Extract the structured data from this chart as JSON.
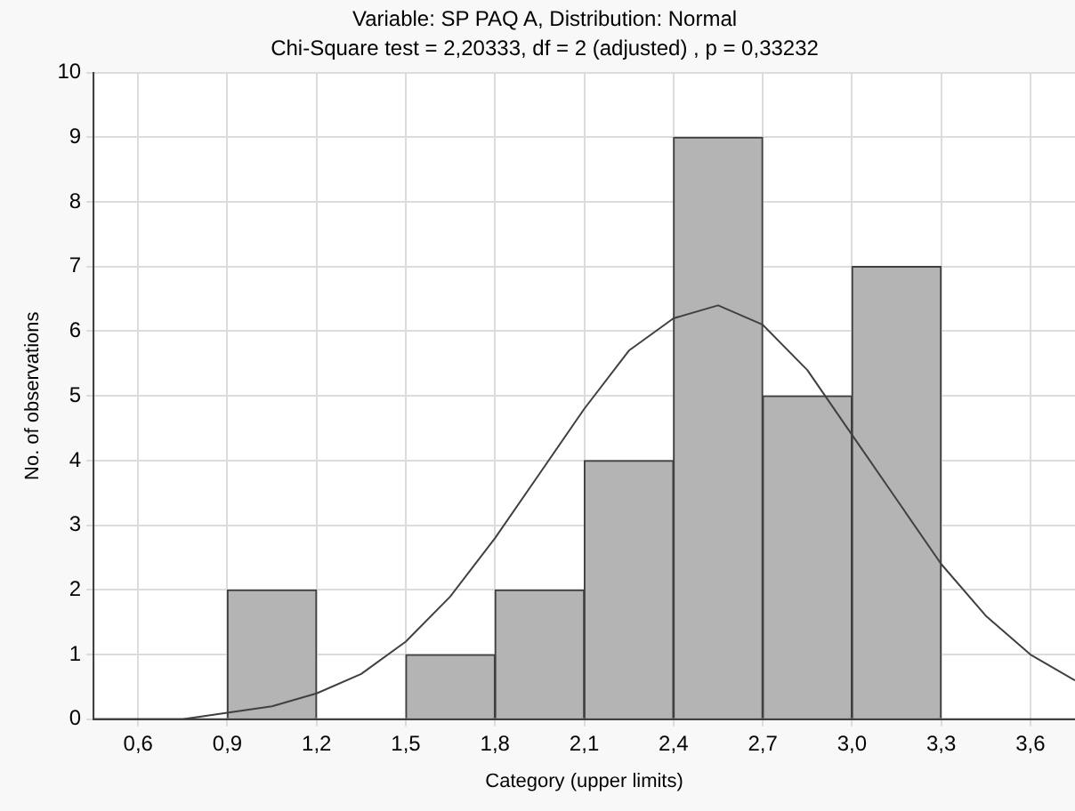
{
  "chart_data": {
    "type": "histogram",
    "title": "Variable: SP PAQ A, Distribution: Normal",
    "subtitle": "Chi-Square test = 2,20333, df = 2 (adjusted) , p = 0,33232",
    "xlabel": "Category (upper limits)",
    "ylabel": "No. of observations",
    "bins": [
      0.6,
      0.9,
      1.2,
      1.5,
      1.8,
      2.1,
      2.4,
      2.7,
      3.0,
      3.3
    ],
    "values": [
      0,
      2,
      0,
      1,
      2,
      4,
      9,
      5,
      7
    ],
    "color": "#b4b4b4",
    "series": [
      {
        "type": "line",
        "color": "#404040",
        "x": [
          0.45,
          0.6,
          0.75,
          0.9,
          1.05,
          1.2,
          1.35,
          1.5,
          1.65,
          1.8,
          1.95,
          2.1,
          2.25,
          2.4,
          2.55,
          2.7,
          2.85,
          3.0,
          3.15,
          3.3,
          3.45,
          3.6,
          3.75
        ],
        "values": [
          0.0,
          0.0,
          0.0,
          0.1,
          0.2,
          0.4,
          0.7,
          1.2,
          1.9,
          2.8,
          3.8,
          4.8,
          5.7,
          6.2,
          6.4,
          6.1,
          5.4,
          4.4,
          3.4,
          2.4,
          1.6,
          1.0,
          0.6
        ]
      }
    ],
    "xlim": [
      0.45,
      3.75
    ],
    "xticks": [
      {
        "value": 0.6,
        "label": "0,6"
      },
      {
        "value": 0.9,
        "label": "0,9"
      },
      {
        "value": 1.2,
        "label": "1,2"
      },
      {
        "value": 1.5,
        "label": "1,5"
      },
      {
        "value": 1.8,
        "label": "1,8"
      },
      {
        "value": 2.1,
        "label": "2,1"
      },
      {
        "value": 2.4,
        "label": "2,4"
      },
      {
        "value": 2.7,
        "label": "2,7"
      },
      {
        "value": 3.0,
        "label": "3,0"
      },
      {
        "value": 3.3,
        "label": "3,3"
      },
      {
        "value": 3.6,
        "label": "3,6"
      }
    ],
    "ylim": [
      0,
      10
    ],
    "yticks": [
      0,
      1,
      2,
      3,
      4,
      5,
      6,
      7,
      8,
      9,
      10
    ],
    "grid": true,
    "marker": "none"
  }
}
